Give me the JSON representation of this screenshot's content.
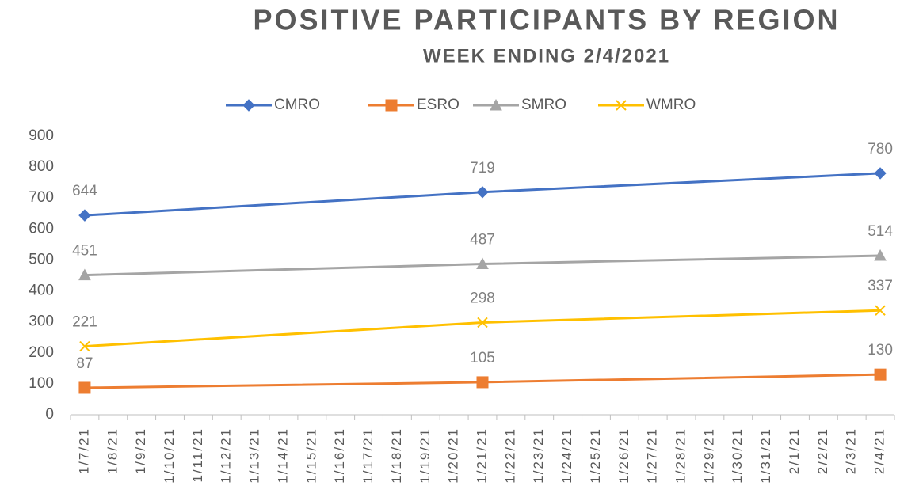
{
  "chart_data": {
    "type": "line",
    "title": "POSITIVE PARTICIPANTS BY REGION",
    "subtitle": "WEEK ENDING 2/4/2021",
    "categories": [
      "1/7/21",
      "1/8/21",
      "1/9/21",
      "1/10/21",
      "1/11/21",
      "1/12/21",
      "1/13/21",
      "1/14/21",
      "1/15/21",
      "1/16/21",
      "1/17/21",
      "1/18/21",
      "1/19/21",
      "1/20/21",
      "1/21/21",
      "1/22/21",
      "1/23/21",
      "1/24/21",
      "1/25/21",
      "1/26/21",
      "1/27/21",
      "1/28/21",
      "1/29/21",
      "1/30/21",
      "1/31/21",
      "2/1/21",
      "2/2/21",
      "2/3/21",
      "2/4/21"
    ],
    "series": [
      {
        "name": "CMRO",
        "color": "#4472c4",
        "marker": "diamond",
        "x": [
          "1/7/21",
          "1/21/21",
          "2/4/21"
        ],
        "values": [
          644,
          719,
          780
        ]
      },
      {
        "name": "ESRO",
        "color": "#ed7d31",
        "marker": "square",
        "x": [
          "1/7/21",
          "1/21/21",
          "2/4/21"
        ],
        "values": [
          87,
          105,
          130
        ]
      },
      {
        "name": "SMRO",
        "color": "#a5a5a5",
        "marker": "triangle",
        "x": [
          "1/7/21",
          "1/21/21",
          "2/4/21"
        ],
        "values": [
          451,
          487,
          514
        ]
      },
      {
        "name": "WMRO",
        "color": "#ffc000",
        "marker": "x",
        "x": [
          "1/7/21",
          "1/21/21",
          "2/4/21"
        ],
        "values": [
          221,
          298,
          337
        ]
      }
    ],
    "ylim": [
      0,
      900
    ],
    "yticks": [
      0,
      100,
      200,
      300,
      400,
      500,
      600,
      700,
      800,
      900
    ],
    "grid": false,
    "legend": "top"
  }
}
